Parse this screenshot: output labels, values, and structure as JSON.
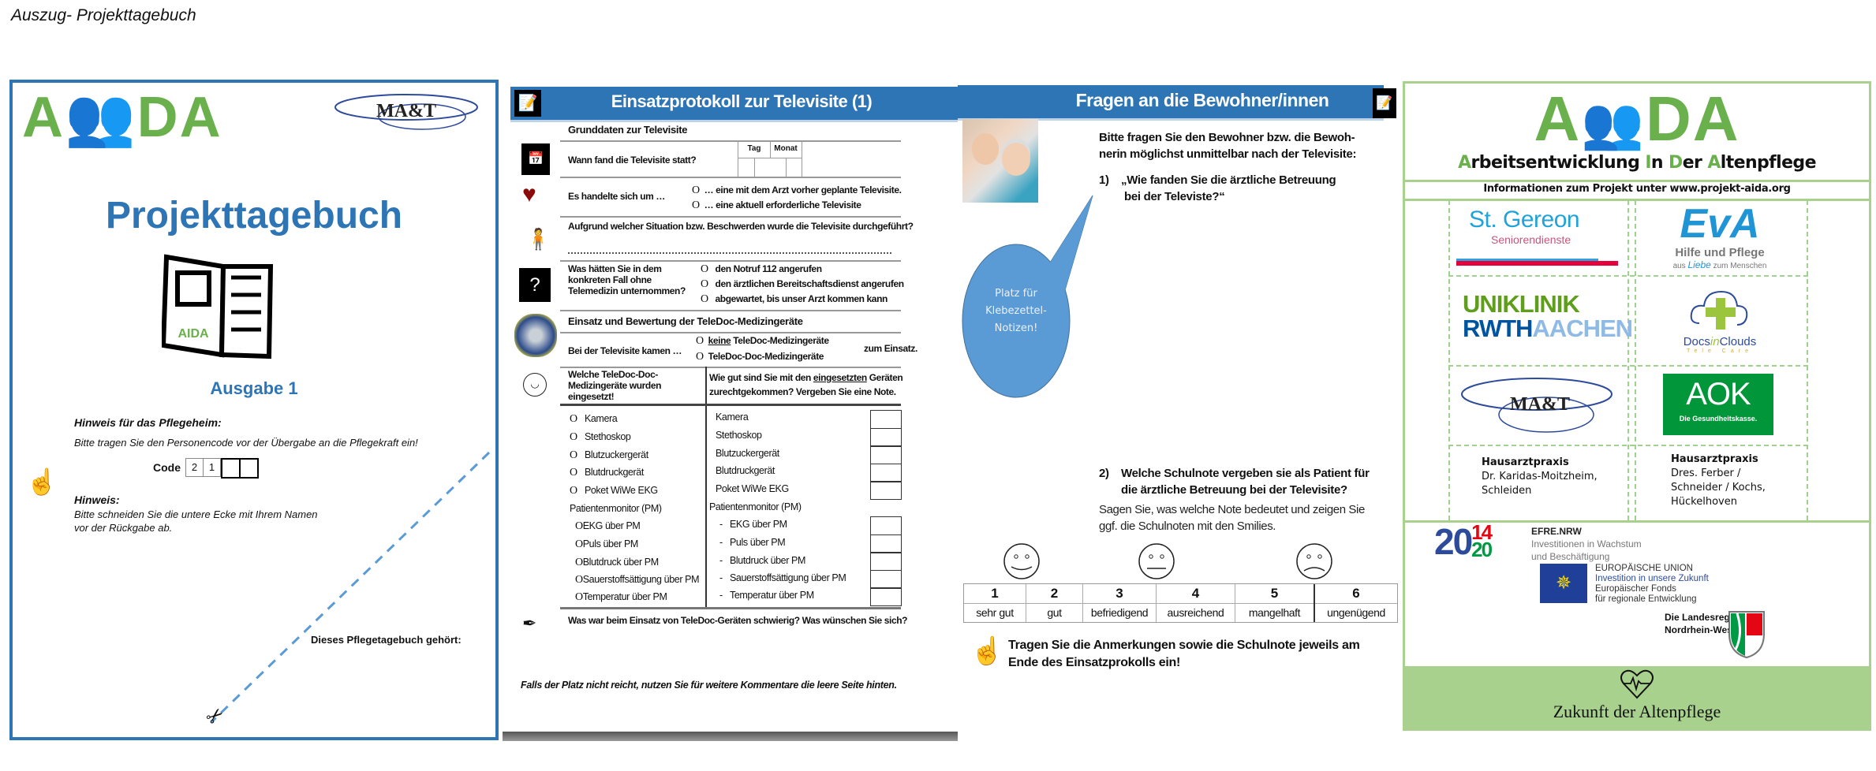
{
  "heading": "Auszug- Projekttagebuch",
  "colors": {
    "blue": "#2e75b6",
    "green": "#6ab04c",
    "light_green": "#a9d18e",
    "bubble": "#5b9bd5"
  },
  "page1": {
    "logo": "AIDA",
    "partner_logo": "MA&T",
    "title": "Projekttagebuch",
    "book_logo": "AIDA",
    "edition": "Ausgabe 1",
    "hint1_title": "Hinweis für das Pflegeheim:",
    "hint1_text": "Bitte tragen Sie den Personencode vor der Übergabe an die Pflegekraft ein!",
    "code_label": "Code",
    "code_digits": [
      "2",
      "1",
      "",
      ""
    ],
    "hint2_title": "Hinweis:",
    "hint2_line1": "Bitte schneiden Sie die untere Ecke mit Ihrem Namen",
    "hint2_line2": "vor der Rückgabe ab.",
    "owner_label": "Dieses Pflegetagebuch gehört:",
    "icons": [
      "pointing-hand-icon",
      "scissors-icon",
      "book-icon"
    ]
  },
  "page2": {
    "title": "Einsatzprotokoll zur Televisite (1)",
    "section1": "Grunddaten zur Televisite",
    "when_q": "Wann fand die Televisite statt?",
    "day_label": "Tag",
    "month_label": "Monat",
    "type_q": "Es handelte sich um …",
    "type_options": [
      "… eine mit dem Arzt vorher geplante Televisite.",
      "… eine aktuell erforderliche Televisite"
    ],
    "reason_q": "Aufgrund welcher Situation bzw. Beschwerden wurde die Televisite durchgeführt?",
    "alt_q": [
      "Was hätten Sie in dem konkreten",
      "Fall ohne Telemedizin",
      "unternommen?"
    ],
    "alt_options": [
      "den Notruf 112 angerufen",
      "den ärztlichen Bereitschaftsdienst angerufen",
      "abgewartet, bis unser Arzt kommen kann"
    ],
    "section2": "Einsatz und Bewertung der TeleDoc-Medizingeräte",
    "used_q": "Bei der Televisite kamen …",
    "used_options": [
      {
        "emph": "keine",
        "rest": " TeleDoc-Medizingeräte"
      },
      {
        "emph": "",
        "rest": "TeleDoc-Doc-Medizingeräte"
      }
    ],
    "used_suffix": "zum Einsatz.",
    "devices_q": [
      "Welche TeleDoc-Doc-Medizingeräte",
      "wurden eingesetzt!"
    ],
    "rating_q_pre": "Wie gut sind Sie mit den ",
    "rating_q_emph": "eingesetzten",
    "rating_q_post": " Geräten",
    "rating_q_line2": "zurechtgekommen? Vergeben Sie eine Note.",
    "radio_glyph": "O",
    "devices": [
      "Kamera",
      "Stethoskop",
      "Blutzuckergerät",
      "Blutdruckgerät",
      "Poket WiWe EKG"
    ],
    "pm_label": "Patientenmonitor (PM)",
    "pm_items": [
      "EKG über PM",
      "Puls über PM",
      "Blutdruck über PM",
      "Sauerstoffsättigung über PM",
      "Temperatur über PM"
    ],
    "feedback_q": "Was war beim Einsatz von TeleDoc-Geräten schwierig? Was wünschen Sie sich?",
    "footer_note": "Falls der Platz nicht reicht, nutzen Sie für weitere Kommentare die leere Seite hinten.",
    "icons": [
      "document-edit-icon",
      "calendar-icon",
      "heart-icon",
      "patient-icon",
      "question-icon",
      "medical-device-icon",
      "smiley-icon",
      "pen-icon"
    ]
  },
  "page3": {
    "title": "Fragen an die Bewohner/innen",
    "intro": [
      "Bitte fragen Sie den Bewohner bzw. die Bewoh-",
      "nerin möglichst unmittelbar nach der Televisite:"
    ],
    "q1_num": "1)",
    "q1": [
      "„Wie fanden Sie die ärztliche Betreuung",
      "bei der Televiste?“"
    ],
    "bubble": [
      "Platz für",
      "Klebezettel-",
      "Notizen!"
    ],
    "q2_num": "2)",
    "q2": [
      "Welche Schulnote vergeben sie als Patient für",
      "die ärztliche Betreuung bei der Televisite?"
    ],
    "q2_hint": [
      "Sagen Sie, was welche Note bedeutet und zeigen Sie",
      "ggf. die Schulnoten mit den Smilies."
    ],
    "grades": [
      {
        "num": "1",
        "label": "sehr gut"
      },
      {
        "num": "2",
        "label": "gut"
      },
      {
        "num": "3",
        "label": "befriedigend"
      },
      {
        "num": "4",
        "label": "ausreichend"
      },
      {
        "num": "5",
        "label": "mangelhaft"
      },
      {
        "num": "6",
        "label": "ungenügend"
      }
    ],
    "note": [
      "Tragen Sie die Anmerkungen sowie die Schulnote jeweils am",
      "Ende des Einsatzprokolls ein!"
    ],
    "icons": [
      "photo-nurse-resident",
      "happy-face-icon",
      "neutral-face-icon",
      "sad-face-icon",
      "pointing-hand-icon",
      "document-edit-icon"
    ]
  },
  "page4": {
    "logo": "AIDA",
    "subtitle_parts": [
      [
        "A",
        "rbeitsentwicklung "
      ],
      [
        "I",
        "n "
      ],
      [
        "D",
        "er "
      ],
      [
        "A",
        "ltenpflege"
      ]
    ],
    "info": "Informationen zum Projekt unter www.projekt-aida.org",
    "partners": {
      "st_gereon": [
        "St. Gereon",
        "Seniorendienste"
      ],
      "eva": [
        "EvA",
        "Hilfe und Pflege",
        "aus ",
        "Liebe",
        " zum Menschen"
      ],
      "uniklinik": [
        "UNIKLINIK",
        "RWTH",
        "AACHEN"
      ],
      "docsinclouds": [
        "Docs",
        "in",
        "Clouds",
        "Tele Care"
      ],
      "mat": "MA&T",
      "aok": [
        "AOK",
        "Die Gesundheitskasse."
      ],
      "praxis1": [
        "Hausarztpraxis",
        "Dr. Karidas-Moitzheim,",
        "Schleiden"
      ],
      "praxis2": [
        "Hausarztpraxis",
        "Dres. Ferber /",
        "Schneider / Kochs,",
        "Hückelhoven"
      ]
    },
    "efre": [
      "EFRE.NRW",
      "Investitionen in Wachstum",
      "und Beschäftigung"
    ],
    "efre_years": [
      "20",
      "14",
      "20"
    ],
    "eu": [
      "EUROPÄISCHE UNION",
      "Investition in unsere Zukunft",
      "Europäischer Fonds",
      "für regionale Entwicklung"
    ],
    "nrw": [
      "Die Landesregierung",
      "Nordrhein-Westfalen"
    ],
    "footer": "Zukunft der Altenpflege",
    "icons": [
      "heartbeat-icon",
      "eu-flag",
      "nrw-coat-of-arms"
    ]
  }
}
